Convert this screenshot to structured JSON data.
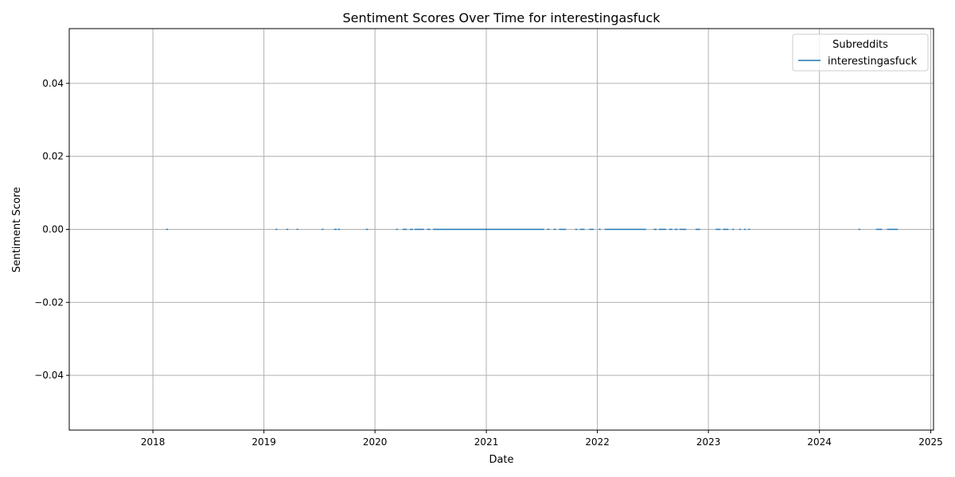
{
  "chart_data": {
    "type": "line",
    "title": "Sentiment Scores Over Time for interestingasfuck",
    "xlabel": "Date",
    "ylabel": "Sentiment Score",
    "x_axis_type": "date",
    "xlim": [
      "2017-04-01",
      "2025-01-10"
    ],
    "ylim": [
      -0.055,
      0.055
    ],
    "x_ticks": [
      "2018",
      "2019",
      "2020",
      "2021",
      "2022",
      "2023",
      "2024",
      "2025"
    ],
    "y_ticks": [
      "0.04",
      "0.02",
      "0.00",
      "−0.02",
      "−0.04"
    ],
    "y_tick_values": [
      0.04,
      0.02,
      0.0,
      -0.02,
      -0.04
    ],
    "grid": true,
    "legend": {
      "title": "Subreddits",
      "position": "top-right"
    },
    "series": [
      {
        "name": "interestingasfuck",
        "color": "#1f77b4",
        "segments": [
          {
            "start": "2018-02-14",
            "end": "2018-02-20",
            "y": 0.0
          },
          {
            "start": "2019-02-08",
            "end": "2019-02-14",
            "y": 0.0
          },
          {
            "start": "2019-03-16",
            "end": "2019-03-22",
            "y": 0.0
          },
          {
            "start": "2019-04-18",
            "end": "2019-04-24",
            "y": 0.0
          },
          {
            "start": "2019-07-10",
            "end": "2019-07-16",
            "y": 0.0
          },
          {
            "start": "2019-08-20",
            "end": "2019-08-28",
            "y": 0.0
          },
          {
            "start": "2019-09-01",
            "end": "2019-09-08",
            "y": 0.0
          },
          {
            "start": "2019-12-02",
            "end": "2019-12-09",
            "y": 0.0
          },
          {
            "start": "2020-03-10",
            "end": "2020-03-16",
            "y": 0.0
          },
          {
            "start": "2020-04-01",
            "end": "2020-04-15",
            "y": 0.0
          },
          {
            "start": "2020-04-25",
            "end": "2020-05-05",
            "y": 0.0
          },
          {
            "start": "2020-05-10",
            "end": "2020-06-10",
            "y": 0.0
          },
          {
            "start": "2020-06-20",
            "end": "2020-07-01",
            "y": 0.0
          },
          {
            "start": "2020-07-10",
            "end": "2021-07-10",
            "y": 0.0
          },
          {
            "start": "2021-07-20",
            "end": "2021-07-28",
            "y": 0.0
          },
          {
            "start": "2021-08-10",
            "end": "2021-08-18",
            "y": 0.0
          },
          {
            "start": "2021-08-28",
            "end": "2021-09-20",
            "y": 0.0
          },
          {
            "start": "2021-10-20",
            "end": "2021-10-27",
            "y": 0.0
          },
          {
            "start": "2021-11-05",
            "end": "2021-11-20",
            "y": 0.0
          },
          {
            "start": "2021-12-05",
            "end": "2021-12-20",
            "y": 0.0
          },
          {
            "start": "2022-01-05",
            "end": "2022-01-12",
            "y": 0.0
          },
          {
            "start": "2022-01-25",
            "end": "2022-06-10",
            "y": 0.0
          },
          {
            "start": "2022-07-05",
            "end": "2022-07-15",
            "y": 0.0
          },
          {
            "start": "2022-07-22",
            "end": "2022-08-15",
            "y": 0.0
          },
          {
            "start": "2022-08-25",
            "end": "2022-09-05",
            "y": 0.0
          },
          {
            "start": "2022-09-12",
            "end": "2022-09-22",
            "y": 0.0
          },
          {
            "start": "2022-09-28",
            "end": "2022-10-20",
            "y": 0.0
          },
          {
            "start": "2022-11-20",
            "end": "2022-12-05",
            "y": 0.0
          },
          {
            "start": "2023-01-25",
            "end": "2023-02-10",
            "y": 0.0
          },
          {
            "start": "2023-02-18",
            "end": "2023-03-08",
            "y": 0.0
          },
          {
            "start": "2023-03-20",
            "end": "2023-03-26",
            "y": 0.0
          },
          {
            "start": "2023-04-12",
            "end": "2023-04-18",
            "y": 0.0
          },
          {
            "start": "2023-04-28",
            "end": "2023-05-04",
            "y": 0.0
          },
          {
            "start": "2023-05-12",
            "end": "2023-05-18",
            "y": 0.0
          },
          {
            "start": "2024-05-08",
            "end": "2024-05-14",
            "y": 0.0
          },
          {
            "start": "2024-07-05",
            "end": "2024-07-25",
            "y": 0.0
          },
          {
            "start": "2024-08-10",
            "end": "2024-09-15",
            "y": 0.0
          }
        ]
      }
    ]
  }
}
